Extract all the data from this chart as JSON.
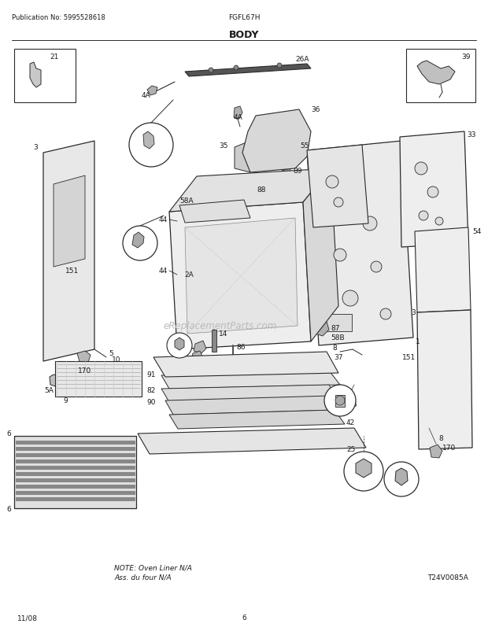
{
  "title": "BODY",
  "pub_no": "Publication No: 5995528618",
  "model": "FGFL67H",
  "date": "11/08",
  "page": "6",
  "diagram_id": "T24V0085A",
  "note_line1": "NOTE: Oven Liner N/A",
  "note_line2": "Ass. du four N/A",
  "watermark": "eReplacementParts.com",
  "bg_color": "#ffffff",
  "lc": "#2a2a2a",
  "tc": "#1a1a1a",
  "fill_light": "#f0f0f0",
  "fill_mid": "#d8d8d8",
  "fill_dark": "#aaaaaa",
  "fill_hatch": "#e8e8e8"
}
